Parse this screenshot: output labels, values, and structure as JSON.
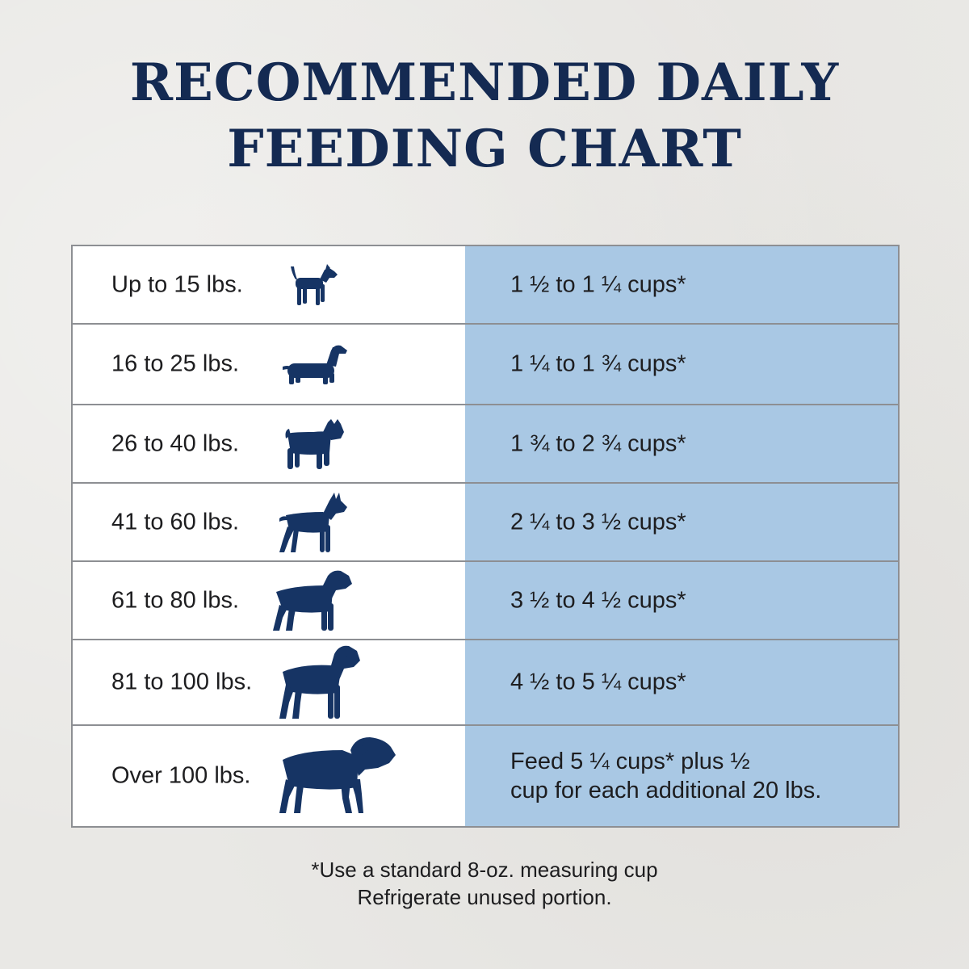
{
  "title": {
    "line1": "RECOMMENDED DAILY",
    "line2": "FEEDING CHART"
  },
  "colors": {
    "title": "#142a52",
    "dog_icon": "#163464",
    "cups_column": "#a9c8e4",
    "weight_column": "#ffffff"
  },
  "rows": [
    {
      "weight": "Up to 15 lbs.",
      "cups": "1 ½ to 1 ¼ cups*",
      "icon": "small-terrier-dog-icon"
    },
    {
      "weight": "16 to 25 lbs.",
      "cups": "1 ¼ to 1 ¾ cups*",
      "icon": "dachshund-dog-icon"
    },
    {
      "weight": "26 to 40 lbs.",
      "cups": "1 ¾ to 2 ¾ cups*",
      "icon": "bulldog-dog-icon"
    },
    {
      "weight": "41 to 60 lbs.",
      "cups": "2 ¼ to 3 ½ cups*",
      "icon": "boxer-dog-icon"
    },
    {
      "weight": "61 to 80 lbs.",
      "cups": "3 ½ to 4 ½ cups*",
      "icon": "rottweiler-dog-icon"
    },
    {
      "weight": "81 to 100 lbs.",
      "cups": "4 ½ to 5 ¼ cups*",
      "icon": "large-rottweiler-dog-icon"
    },
    {
      "weight": "Over 100 lbs.",
      "cups_line1": "Feed 5 ¼ cups* plus ½",
      "cups_line2": "cup for each additional 20 lbs.",
      "icon": "mastiff-dog-icon"
    }
  ],
  "footnote": {
    "line1": "*Use a standard 8-oz. measuring cup",
    "line2": "Refrigerate unused portion."
  }
}
